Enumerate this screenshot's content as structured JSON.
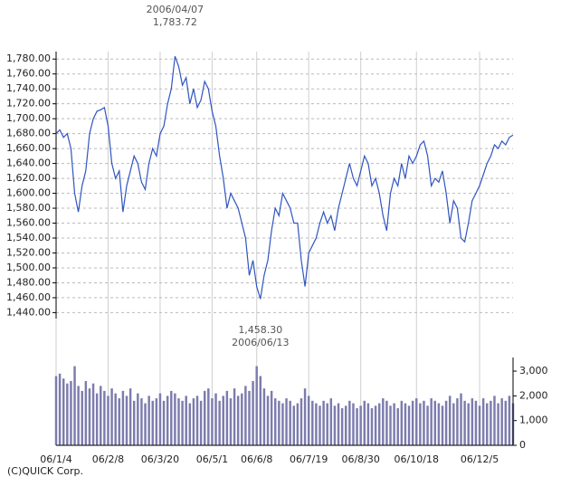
{
  "chart_data": [
    {
      "type": "line",
      "categories": [
        "06/1/4",
        null,
        null,
        null,
        null,
        null,
        null,
        null,
        null,
        null,
        null,
        null,
        null,
        null,
        "06/2/8",
        null,
        null,
        null,
        null,
        null,
        null,
        null,
        null,
        null,
        null,
        null,
        null,
        null,
        "06/3/20",
        null,
        null,
        null,
        null,
        null,
        null,
        null,
        null,
        null,
        null,
        null,
        null,
        null,
        "06/5/1",
        null,
        null,
        null,
        null,
        null,
        null,
        null,
        null,
        null,
        null,
        null,
        "06/6/8",
        null,
        null,
        null,
        null,
        null,
        null,
        null,
        null,
        null,
        null,
        null,
        null,
        null,
        "06/7/19",
        null,
        null,
        null,
        null,
        null,
        null,
        null,
        null,
        null,
        null,
        null,
        null,
        null,
        "06/8/30",
        null,
        null,
        null,
        null,
        null,
        null,
        null,
        null,
        null,
        null,
        null,
        null,
        null,
        null,
        "06/10/18",
        null,
        null,
        null,
        null,
        null,
        null,
        null,
        null,
        null,
        null,
        null,
        null,
        null,
        null,
        null,
        null,
        "06/12/5",
        null,
        null,
        null,
        null,
        null,
        null,
        null,
        null,
        null
      ],
      "series": [
        {
          "color": "#2f55c0",
          "values": [
            1680,
            1685,
            1675,
            1680,
            1660,
            1600,
            1575,
            1610,
            1630,
            1680,
            1700,
            1710,
            1712,
            1715,
            1690,
            1640,
            1620,
            1630,
            1575,
            1610,
            1630,
            1650,
            1640,
            1615,
            1605,
            1640,
            1660,
            1650,
            1680,
            1690,
            1720,
            1740,
            1783.72,
            1770,
            1745,
            1755,
            1720,
            1740,
            1715,
            1725,
            1750,
            1740,
            1710,
            1690,
            1650,
            1620,
            1580,
            1600,
            1590,
            1580,
            1560,
            1540,
            1490,
            1510,
            1475,
            1458.3,
            1490,
            1510,
            1550,
            1580,
            1570,
            1600,
            1590,
            1580,
            1560,
            1560,
            1510,
            1475,
            1520,
            1530,
            1540,
            1560,
            1575,
            1560,
            1570,
            1550,
            1580,
            1600,
            1620,
            1640,
            1620,
            1610,
            1630,
            1650,
            1640,
            1610,
            1620,
            1600,
            1570,
            1550,
            1600,
            1620,
            1610,
            1640,
            1620,
            1650,
            1640,
            1650,
            1665,
            1670,
            1650,
            1610,
            1620,
            1615,
            1630,
            1600,
            1560,
            1590,
            1580,
            1540,
            1535,
            1560,
            1590,
            1600,
            1610,
            1625,
            1640,
            1650,
            1665,
            1660,
            1670,
            1665,
            1675,
            1678
          ]
        }
      ],
      "ylim": [
        1432,
        1790
      ],
      "yticks": [
        {
          "value": 1440,
          "label": "1,440.00"
        },
        {
          "value": 1460,
          "label": "1,460.00"
        },
        {
          "value": 1480,
          "label": "1,480.00"
        },
        {
          "value": 1500,
          "label": "1,500.00"
        },
        {
          "value": 1520,
          "label": "1,520.00"
        },
        {
          "value": 1540,
          "label": "1,540.00"
        },
        {
          "value": 1560,
          "label": "1,560.00"
        },
        {
          "value": 1580,
          "label": "1,580.00"
        },
        {
          "value": 1600,
          "label": "1,600.00"
        },
        {
          "value": 1620,
          "label": "1,620.00"
        },
        {
          "value": 1640,
          "label": "1,640.00"
        },
        {
          "value": 1660,
          "label": "1,660.00"
        },
        {
          "value": 1680,
          "label": "1,680.00"
        },
        {
          "value": 1700,
          "label": "1,700.00"
        },
        {
          "value": 1720,
          "label": "1,720.00"
        },
        {
          "value": 1740,
          "label": "1,740.00"
        },
        {
          "value": 1760,
          "label": "1,760.00"
        },
        {
          "value": 1780,
          "label": "1,780.00"
        }
      ],
      "grid": true,
      "annotations": [
        {
          "lines": [
            "2006/04/07",
            "1,783.72"
          ]
        },
        {
          "lines": [
            "1,458.30",
            "2006/06/13"
          ]
        }
      ],
      "source": "(C)QUICK Corp."
    },
    {
      "type": "bar",
      "color": "#7c7cae",
      "values": [
        2800,
        2900,
        2700,
        2500,
        2600,
        3200,
        2400,
        2200,
        2600,
        2300,
        2500,
        2100,
        2400,
        2200,
        2000,
        2300,
        2100,
        1900,
        2200,
        2000,
        2300,
        1800,
        2100,
        1900,
        1700,
        2000,
        1800,
        1900,
        2100,
        1800,
        2000,
        2200,
        2100,
        1900,
        1800,
        2000,
        1700,
        1900,
        2000,
        1800,
        2200,
        2300,
        1900,
        2100,
        1800,
        2000,
        2200,
        1900,
        2300,
        2000,
        2100,
        2400,
        2200,
        2600,
        3200,
        2800,
        2300,
        2000,
        2200,
        1900,
        1800,
        1700,
        1900,
        1800,
        1600,
        1700,
        1900,
        2300,
        2000,
        1800,
        1700,
        1600,
        1800,
        1700,
        1900,
        1600,
        1700,
        1500,
        1600,
        1800,
        1700,
        1500,
        1600,
        1800,
        1700,
        1500,
        1600,
        1700,
        1900,
        1800,
        1600,
        1700,
        1500,
        1800,
        1700,
        1600,
        1800,
        1900,
        1700,
        1800,
        1600,
        1900,
        1800,
        1700,
        1600,
        1800,
        2000,
        1700,
        1900,
        2100,
        1800,
        1700,
        1900,
        1800,
        1600,
        1900,
        1700,
        1800,
        2000,
        1700,
        1900,
        1800,
        2000,
        1700
      ],
      "ylim": [
        0,
        3550
      ],
      "yticks": [
        0,
        {
          "value": 1000,
          "label": "1,000"
        },
        {
          "value": 2000,
          "label": "2,000"
        },
        {
          "value": 3000,
          "label": "3,000"
        }
      ]
    }
  ]
}
